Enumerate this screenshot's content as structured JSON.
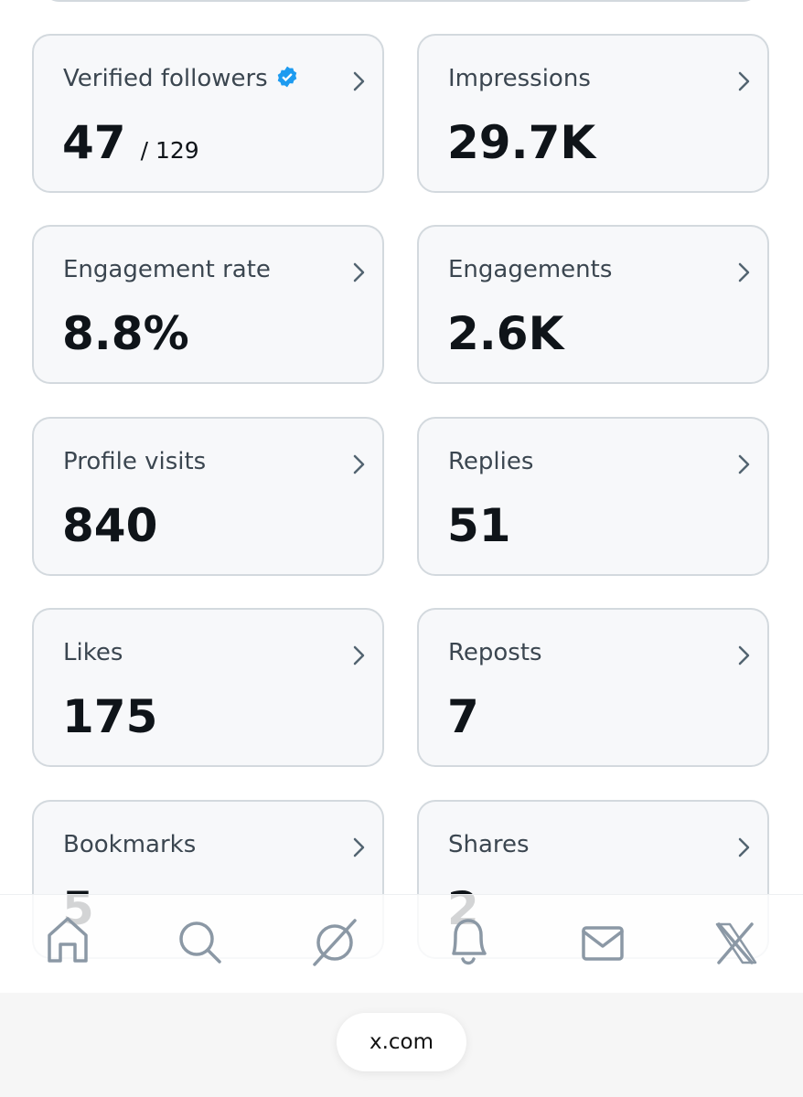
{
  "cards": [
    {
      "label": "Verified followers",
      "value": "47",
      "suffix": "/ 129"
    },
    {
      "label": "Impressions",
      "value": "29.7K"
    },
    {
      "label": "Engagement rate",
      "value": "8.8%"
    },
    {
      "label": "Engagements",
      "value": "2.6K"
    },
    {
      "label": "Profile visits",
      "value": "840"
    },
    {
      "label": "Replies",
      "value": "51"
    },
    {
      "label": "Likes",
      "value": "175"
    },
    {
      "label": "Reposts",
      "value": "7"
    },
    {
      "label": "Bookmarks",
      "value": "5"
    },
    {
      "label": "Shares",
      "value": "2"
    }
  ],
  "browser": {
    "url": "x.com"
  }
}
